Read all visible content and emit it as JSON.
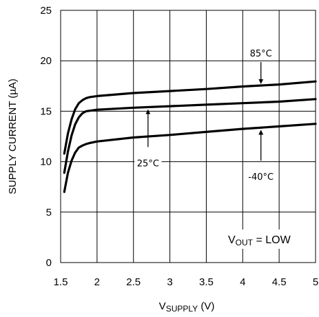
{
  "chart_data": {
    "type": "line",
    "title": "",
    "xlabel": {
      "main": "V",
      "sub": "SUPPLY",
      "unit": " (V)"
    },
    "ylabel": "SUPPLY CURRENT (µA)",
    "xlim": [
      1.5,
      5
    ],
    "ylim": [
      0,
      25
    ],
    "x_ticks": [
      "1.5",
      "2",
      "2.5",
      "3",
      "3.5",
      "4",
      "4.5",
      "5"
    ],
    "y_ticks": [
      "0",
      "5",
      "10",
      "15",
      "20",
      "25"
    ],
    "grid": true,
    "condition": {
      "prefix": "V",
      "sub": "OUT",
      "suffix": " = LOW"
    },
    "series": [
      {
        "name": "85°C",
        "x": [
          1.55,
          1.6,
          1.65,
          1.7,
          1.75,
          1.8,
          1.85,
          1.9,
          2.0,
          2.5,
          3.0,
          3.5,
          4.0,
          4.5,
          5.0
        ],
        "y": [
          10.8,
          12.8,
          14.2,
          15.2,
          15.8,
          16.1,
          16.3,
          16.4,
          16.5,
          16.8,
          17.0,
          17.2,
          17.45,
          17.65,
          17.95
        ]
      },
      {
        "name": "25°C",
        "x": [
          1.55,
          1.6,
          1.65,
          1.7,
          1.75,
          1.8,
          1.85,
          1.9,
          2.0,
          2.5,
          3.0,
          3.5,
          4.0,
          4.5,
          5.0
        ],
        "y": [
          8.9,
          11.0,
          12.6,
          13.7,
          14.4,
          14.8,
          15.0,
          15.05,
          15.15,
          15.35,
          15.5,
          15.65,
          15.8,
          15.95,
          16.2
        ]
      },
      {
        "name": "-40°C",
        "x": [
          1.55,
          1.6,
          1.65,
          1.7,
          1.75,
          1.8,
          1.85,
          1.9,
          2.0,
          2.5,
          3.0,
          3.5,
          4.0,
          4.5,
          5.0
        ],
        "y": [
          7.0,
          8.9,
          10.1,
          10.9,
          11.4,
          11.6,
          11.75,
          11.85,
          12.0,
          12.4,
          12.65,
          12.95,
          13.25,
          13.5,
          13.75
        ]
      }
    ],
    "annotations": [
      {
        "text": "85°C",
        "series": "85°C",
        "x": 4.25
      },
      {
        "text": "25°C",
        "series": "25°C",
        "x": 2.7
      },
      {
        "text": "-40°C",
        "series": "-40°C",
        "x": 4.25
      }
    ]
  }
}
